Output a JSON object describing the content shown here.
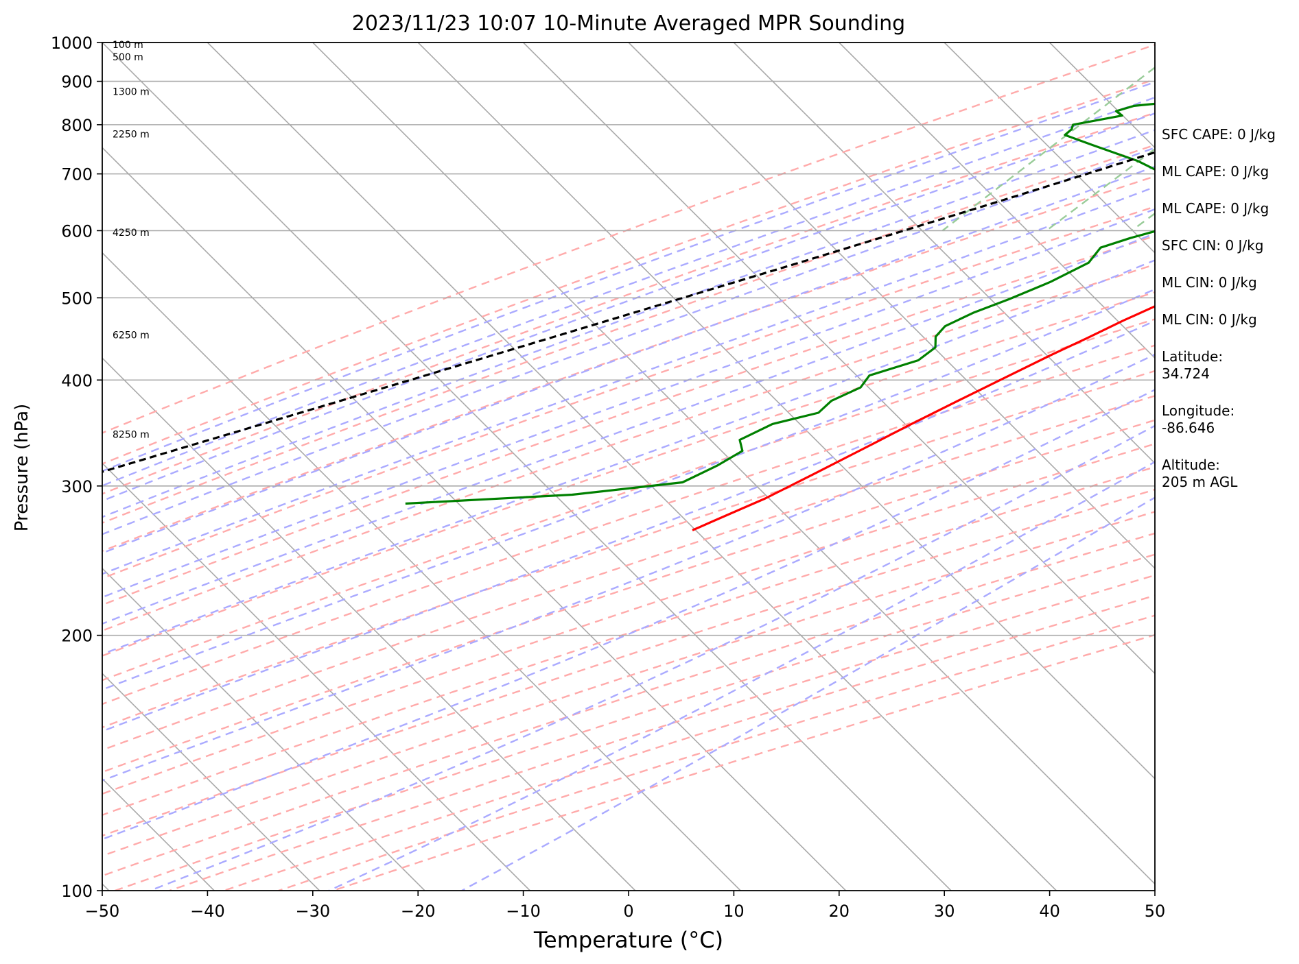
{
  "chart_data": {
    "type": "line",
    "subtype": "skew-T log-P sounding",
    "title": "2023/11/23 10:07 10-Minute Averaged MPR Sounding",
    "xlabel": "Temperature (°C)",
    "ylabel": "Pressure (hPa)",
    "xlim": [
      -50,
      50
    ],
    "ylim": [
      1000,
      100
    ],
    "y_scale": "log",
    "x_ticks": [
      "−50",
      "−40",
      "−30",
      "−20",
      "−10",
      "0",
      "10",
      "20",
      "30",
      "40",
      "50"
    ],
    "y_ticks": [
      "100",
      "200",
      "300",
      "400",
      "500",
      "600",
      "700",
      "800",
      "900",
      "1000"
    ],
    "grid": true,
    "height_labels": [
      {
        "label": "8250 m",
        "p": 345
      },
      {
        "label": "6250 m",
        "p": 452
      },
      {
        "label": "4250 m",
        "p": 597
      },
      {
        "label": "2250 m",
        "p": 780
      },
      {
        "label": "1300 m",
        "p": 875
      },
      {
        "label": "500 m",
        "p": 962
      },
      {
        "label": "100 m",
        "p": 994
      }
    ],
    "series": [
      {
        "color": "#ff0000",
        "points": [
          {
            "p": 1000,
            "t": 2.0
          },
          {
            "p": 993,
            "t": 4.0
          },
          {
            "p": 985,
            "t": 4.9
          },
          {
            "p": 965,
            "t": 5.2
          },
          {
            "p": 950,
            "t": 4.6
          },
          {
            "p": 935,
            "t": 4.9
          },
          {
            "p": 918,
            "t": 6.2
          },
          {
            "p": 898,
            "t": 7.1
          },
          {
            "p": 880,
            "t": 7.6
          },
          {
            "p": 868,
            "t": 8.7
          },
          {
            "p": 845,
            "t": 9.4
          },
          {
            "p": 825,
            "t": 9.3
          },
          {
            "p": 808,
            "t": 9.1
          },
          {
            "p": 793,
            "t": 9.1
          },
          {
            "p": 780,
            "t": 8.7
          },
          {
            "p": 760,
            "t": 7.8
          },
          {
            "p": 735,
            "t": 6.6
          },
          {
            "p": 700,
            "t": 4.7
          },
          {
            "p": 675,
            "t": 3.5
          },
          {
            "p": 655,
            "t": 2.7
          },
          {
            "p": 625,
            "t": 1.4
          },
          {
            "p": 600,
            "t": 0.3
          },
          {
            "p": 585,
            "t": -0.1
          },
          {
            "p": 555,
            "t": -1.8
          },
          {
            "p": 530,
            "t": -3.0
          },
          {
            "p": 515,
            "t": -4.0
          },
          {
            "p": 495,
            "t": -5.0
          },
          {
            "p": 470,
            "t": -7.2
          },
          {
            "p": 448,
            "t": -9.0
          },
          {
            "p": 428,
            "t": -10.8
          },
          {
            "p": 405,
            "t": -12.8
          },
          {
            "p": 380,
            "t": -15.1
          },
          {
            "p": 355,
            "t": -17.5
          },
          {
            "p": 335,
            "t": -19.4
          },
          {
            "p": 310,
            "t": -22.0
          },
          {
            "p": 290,
            "t": -24.3
          },
          {
            "p": 280,
            "t": -25.9
          },
          {
            "p": 272,
            "t": -27.2
          },
          {
            "p": 266,
            "t": -28.2
          }
        ]
      },
      {
        "color": "#008000",
        "points": [
          {
            "p": 1000,
            "t": 1.0
          },
          {
            "p": 993,
            "t": 1.5
          },
          {
            "p": 980,
            "t": 3.0
          },
          {
            "p": 960,
            "t": 0.6
          },
          {
            "p": 942,
            "t": -1.6
          },
          {
            "p": 922,
            "t": -7.5
          },
          {
            "p": 900,
            "t": -14.5
          },
          {
            "p": 880,
            "t": -18.6
          },
          {
            "p": 862,
            "t": -19.2
          },
          {
            "p": 842,
            "t": -26.6
          },
          {
            "p": 830,
            "t": -27.8
          },
          {
            "p": 820,
            "t": -26.8
          },
          {
            "p": 800,
            "t": -30.6
          },
          {
            "p": 790,
            "t": -30.3
          },
          {
            "p": 778,
            "t": -30.4
          },
          {
            "p": 757,
            "t": -26.8
          },
          {
            "p": 725,
            "t": -21.0
          },
          {
            "p": 700,
            "t": -17.3
          },
          {
            "p": 680,
            "t": -15.8
          },
          {
            "p": 660,
            "t": -12.0
          },
          {
            "p": 645,
            "t": -3.2
          },
          {
            "p": 628,
            "t": -7.9
          },
          {
            "p": 610,
            "t": -11.0
          },
          {
            "p": 588,
            "t": -14.4
          },
          {
            "p": 573,
            "t": -16.3
          },
          {
            "p": 550,
            "t": -16.0
          },
          {
            "p": 522,
            "t": -17.8
          },
          {
            "p": 498,
            "t": -20.1
          },
          {
            "p": 480,
            "t": -22.2
          },
          {
            "p": 463,
            "t": -23.6
          },
          {
            "p": 450,
            "t": -23.5
          },
          {
            "p": 437,
            "t": -22.5
          },
          {
            "p": 422,
            "t": -22.9
          },
          {
            "p": 405,
            "t": -26.1
          },
          {
            "p": 392,
            "t": -25.8
          },
          {
            "p": 378,
            "t": -27.3
          },
          {
            "p": 366,
            "t": -27.4
          },
          {
            "p": 355,
            "t": -30.7
          },
          {
            "p": 340,
            "t": -32.3
          },
          {
            "p": 330,
            "t": -31.0
          },
          {
            "p": 317,
            "t": -32.0
          },
          {
            "p": 303,
            "t": -33.7
          },
          {
            "p": 293,
            "t": -43.0
          },
          {
            "p": 286,
            "t": -58.0
          }
        ]
      },
      {
        "color": "#000000",
        "dash": true,
        "points": [
          {
            "p": 1000,
            "t": 1.0
          },
          {
            "p": 955,
            "t": -2.1
          },
          {
            "p": 900,
            "t": -6.2
          },
          {
            "p": 850,
            "t": -10.2
          },
          {
            "p": 800,
            "t": -14.6
          },
          {
            "p": 750,
            "t": -19.4
          },
          {
            "p": 700,
            "t": -24.6
          },
          {
            "p": 650,
            "t": -30.3
          },
          {
            "p": 600,
            "t": -36.6
          },
          {
            "p": 550,
            "t": -43.5
          },
          {
            "p": 500,
            "t": -51.2
          },
          {
            "p": 450,
            "t": -59.7
          },
          {
            "p": 400,
            "t": -69.3
          },
          {
            "p": 350,
            "t": -80.3
          },
          {
            "p": 300,
            "t": -93.0
          },
          {
            "p": 275,
            "t": -100.3
          }
        ]
      }
    ],
    "background_lines": {
      "isotherms": {
        "color": "#a9a9a9"
      },
      "dry_adiabats": {
        "color": "#ffaaaa",
        "dash": true
      },
      "moist_adiabats": {
        "color": "#aaaaff",
        "dash": true
      },
      "mixing_ratio": {
        "color": "#99cc99",
        "dash": true
      }
    }
  },
  "stats": {
    "sfc_cape": "SFC CAPE: 0 J/kg",
    "ml_cape_1": "ML CAPE: 0 J/kg",
    "ml_cape_2": "ML CAPE: 0 J/kg",
    "sfc_cin": "SFC CIN: 0 J/kg",
    "ml_cin_1": "ML CIN: 0 J/kg",
    "ml_cin_2": "ML CIN: 0 J/kg",
    "latitude_label": "Latitude:",
    "latitude_value": "34.724",
    "longitude_label": "Longitude:",
    "longitude_value": "-86.646",
    "altitude_label": "Altitude:",
    "altitude_value": "205 m AGL"
  }
}
